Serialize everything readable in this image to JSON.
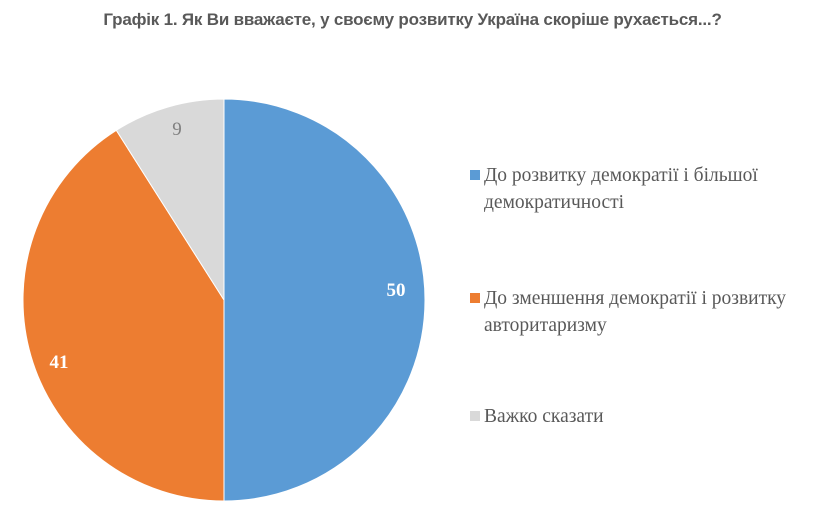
{
  "title": "Графік 1. Як Ви вважаєте, у своєму розвитку Україна скоріше рухається...?",
  "chart_data": {
    "type": "pie",
    "title": "Графік 1. Як Ви вважаєте, у своєму розвитку Україна скоріше рухається...?",
    "categories": [
      "До розвитку демократії і більшої демократичності",
      "До зменшення демократії і розвитку авторитаризму",
      "Важко сказати"
    ],
    "values": [
      50,
      41,
      9
    ],
    "colors": [
      "#5B9BD5",
      "#ED7D31",
      "#D9D9D9"
    ],
    "data_labels": [
      "50",
      "41",
      "9"
    ],
    "legend_position": "right",
    "start_angle_deg": 0,
    "direction": "clockwise"
  },
  "legend": [
    {
      "label": "До розвитку демократії і більшої демократичності",
      "line1": "До розвитку демократії і більшої",
      "line2": "демократичності",
      "color": "#5B9BD5"
    },
    {
      "label": "До зменшення демократії і розвитку авторитаризму",
      "line1": "До зменшення демократії і розвитку",
      "line2": "авторитаризму",
      "color": "#ED7D31"
    },
    {
      "label": "Важко сказати",
      "line1": "Важко сказати",
      "line2": "",
      "color": "#D9D9D9"
    }
  ],
  "labels": {
    "blue": "50",
    "orange": "41",
    "grey": "9"
  }
}
